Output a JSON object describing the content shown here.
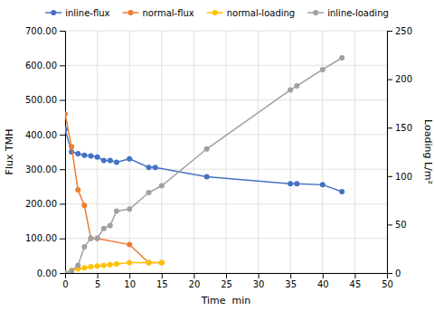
{
  "chart_data": {
    "type": "line",
    "xlabel": "Time  min",
    "ylabel": "Flux TMH",
    "y2label": "Loading L/m²",
    "series": [
      {
        "name": "inline-flux",
        "color": "#4472C4",
        "x": [
          0,
          1,
          2,
          3,
          4,
          5,
          6,
          7,
          8,
          10,
          13,
          14,
          22,
          35,
          36,
          40,
          43
        ],
        "values": [
          415,
          350,
          345,
          340,
          338,
          335,
          325,
          325,
          320,
          330,
          305,
          305,
          278,
          258,
          258,
          255,
          235
        ]
      },
      {
        "name": "normal-flux",
        "color": "#ED7D31",
        "x": [
          0,
          1,
          2,
          3,
          4,
          5,
          10,
          13,
          15
        ],
        "values": [
          460,
          365,
          240,
          195,
          100,
          100,
          82,
          30,
          30
        ]
      },
      {
        "name": "normal-loading",
        "color": "#FFC000",
        "x": [
          0,
          1,
          2,
          3,
          4,
          5,
          6,
          7,
          8,
          10,
          13,
          15
        ],
        "values": [
          0,
          8,
          12,
          15,
          18,
          20,
          22,
          24,
          26,
          30,
          30,
          30
        ]
      },
      {
        "name": "inline-loading",
        "color": "#A0A0A0",
        "axis": "y2",
        "x": [
          0,
          1,
          2,
          3,
          4,
          5,
          6,
          7,
          8,
          10,
          13,
          15,
          22,
          35,
          36,
          40,
          43
        ],
        "values": [
          0,
          2,
          8,
          27,
          36,
          36,
          46,
          49,
          64,
          66,
          83,
          90,
          128,
          189,
          193,
          210,
          222
        ]
      }
    ],
    "xlim": [
      0,
      50
    ],
    "xticks": [
      0,
      5,
      10,
      15,
      20,
      25,
      30,
      35,
      40,
      45,
      50
    ],
    "ylim": [
      0,
      700
    ],
    "yticks": [
      {
        "value": 0,
        "label": "0.00"
      },
      {
        "value": 100,
        "label": "100.00"
      },
      {
        "value": 200,
        "label": "200.00"
      },
      {
        "value": 300,
        "label": "300.00"
      },
      {
        "value": 400,
        "label": "400.00"
      },
      {
        "value": 500,
        "label": "500.00"
      },
      {
        "value": 600,
        "label": "600.00"
      },
      {
        "value": 700,
        "label": "700.00"
      }
    ],
    "y2lim": [
      0,
      250
    ],
    "y2ticks": [
      0,
      50,
      100,
      150,
      200,
      250
    ],
    "grid": true,
    "legend": "top",
    "marker": "circle"
  }
}
